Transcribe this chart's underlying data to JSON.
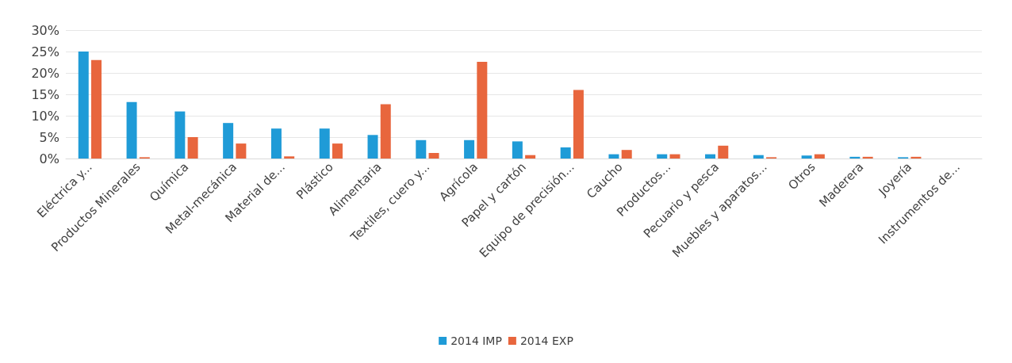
{
  "chart_data": {
    "type": "bar",
    "categories": [
      "Eléctrica y...",
      "Productos Minerales",
      "Química",
      "Metal-mecánica",
      "Material de...",
      "Plástico",
      "Alimentaria",
      "Textiles, cuero y...",
      "Agrícola",
      "Papel y cartón",
      "Equipo de precisión...",
      "Caucho",
      "Productos...",
      "Pecuario y pesca",
      "Muebles y aparatos...",
      "Otros",
      "Maderera",
      "Joyería",
      "Instrumentos de..."
    ],
    "series": [
      {
        "name": "2014 IMP",
        "color": "#1f9bd7",
        "values": [
          25,
          13.2,
          11,
          8.3,
          7,
          7,
          5.5,
          4.3,
          4.3,
          4,
          2.6,
          1,
          1,
          1,
          0.8,
          0.7,
          0.4,
          0.3,
          0
        ]
      },
      {
        "name": "2014 EXP",
        "color": "#e8663d",
        "values": [
          23,
          0.3,
          5,
          3.5,
          0.5,
          3.5,
          12.7,
          1.3,
          22.6,
          0.8,
          16,
          2,
          1,
          3,
          0.3,
          1,
          0.4,
          0.4,
          0
        ]
      }
    ],
    "ylim": [
      0,
      30
    ],
    "yticks": [
      {
        "value": 0,
        "label": "0%"
      },
      {
        "value": 5,
        "label": "5%"
      },
      {
        "value": 10,
        "label": "10%"
      },
      {
        "value": 15,
        "label": "15%"
      },
      {
        "value": 20,
        "label": "20%"
      },
      {
        "value": 25,
        "label": "25%"
      },
      {
        "value": 30,
        "label": "30%"
      }
    ],
    "grid": "y",
    "legend": "bottom"
  }
}
